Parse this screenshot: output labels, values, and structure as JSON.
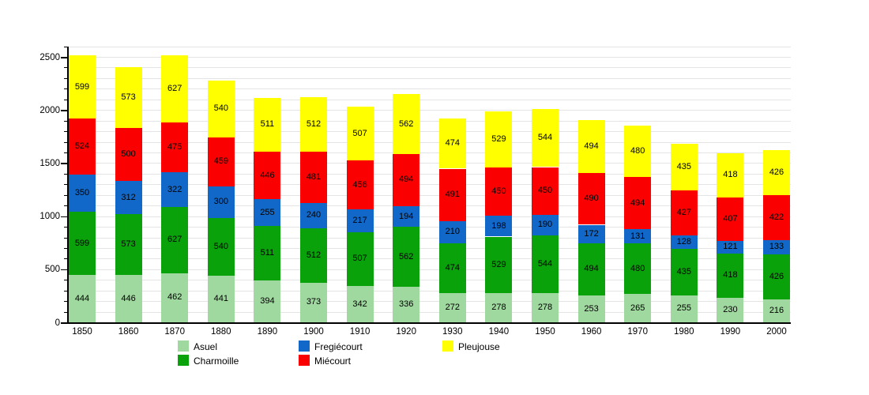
{
  "chart_data": {
    "type": "bar",
    "stacked": true,
    "title": "",
    "xlabel": "",
    "ylabel": "",
    "categories": [
      "1850",
      "1860",
      "1870",
      "1880",
      "1890",
      "1900",
      "1910",
      "1920",
      "1930",
      "1940",
      "1950",
      "1960",
      "1970",
      "1980",
      "1990",
      "2000"
    ],
    "series": [
      {
        "name": "Asuel",
        "color": "#9fd99f",
        "values": [
          444,
          446,
          462,
          441,
          394,
          373,
          342,
          336,
          272,
          278,
          278,
          253,
          265,
          255,
          230,
          216
        ]
      },
      {
        "name": "Charmoille",
        "color": "#0aa20a",
        "values": [
          599,
          573,
          627,
          540,
          511,
          512,
          507,
          562,
          474,
          529,
          544,
          494,
          480,
          435,
          418,
          426
        ]
      },
      {
        "name": "Fregiécourt",
        "color": "#1168c8",
        "values": [
          350,
          312,
          322,
          300,
          255,
          240,
          217,
          194,
          210,
          198,
          190,
          172,
          131,
          128,
          121,
          133
        ]
      },
      {
        "name": "Miécourt",
        "color": "#fa0000",
        "values": [
          524,
          500,
          475,
          459,
          446,
          481,
          456,
          494,
          491,
          450,
          450,
          490,
          494,
          427,
          407,
          422
        ]
      },
      {
        "name": "Pleujouse",
        "color": "#ffff00",
        "values": [
          599,
          573,
          627,
          540,
          511,
          512,
          507,
          562,
          474,
          529,
          544,
          494,
          480,
          435,
          418,
          426
        ]
      }
    ],
    "y_ticks": [
      0,
      500,
      1000,
      1500,
      2000,
      2500
    ],
    "ylim": [
      0,
      2600
    ],
    "minor_grid_step": 100,
    "grid": true,
    "value_labels": true,
    "legend_position": "bottom",
    "legend_columns": [
      [
        "Asuel",
        "Charmoille"
      ],
      [
        "Fregiécourt",
        "Miécourt"
      ],
      [
        "Pleujouse"
      ]
    ]
  },
  "colors": {
    "grid": "#e4e4e4",
    "axis": "#000000",
    "background": "#ffffff",
    "label_text": "#000000"
  }
}
